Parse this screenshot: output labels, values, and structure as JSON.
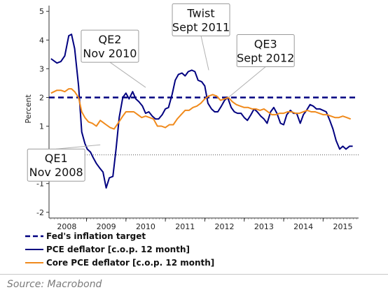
{
  "chart_data": {
    "type": "line",
    "ylabel": "Percent",
    "ylim": [
      -2.2,
      5.2
    ],
    "yticks": [
      5,
      4,
      3,
      2,
      1,
      0,
      -1,
      -2
    ],
    "xlim": [
      2007.55,
      2015.4
    ],
    "x_tick_labels": [
      {
        "label": "2008",
        "x": 2008.0
      },
      {
        "label": "2009",
        "x": 2009.0
      },
      {
        "label": "2010",
        "x": 2010.0
      },
      {
        "label": "2011",
        "x": 2011.0
      },
      {
        "label": "2012",
        "x": 2012.0
      },
      {
        "label": "2013",
        "x": 2013.0
      },
      {
        "label": "2014",
        "x": 2014.0
      },
      {
        "label": "2015",
        "x": 2015.0
      }
    ],
    "zero_line": "dotted",
    "series": [
      {
        "name": "Fed's inflation target",
        "color": "#000080",
        "style": "dashed",
        "x": [
          2007.55,
          2015.4
        ],
        "y": [
          2.0,
          2.0
        ]
      },
      {
        "name": "PCE deflator [c.o.p. 12 month]",
        "color": "#000080",
        "style": "solid",
        "x": [
          2007.6,
          2007.75,
          2007.85,
          2007.95,
          2008.05,
          2008.12,
          2008.2,
          2008.3,
          2008.38,
          2008.46,
          2008.52,
          2008.6,
          2008.67,
          2008.75,
          2008.83,
          2008.92,
          2009.0,
          2009.08,
          2009.17,
          2009.25,
          2009.33,
          2009.42,
          2009.5,
          2009.58,
          2009.67,
          2009.75,
          2009.83,
          2009.92,
          2010.0,
          2010.08,
          2010.17,
          2010.25,
          2010.33,
          2010.42,
          2010.5,
          2010.58,
          2010.67,
          2010.75,
          2010.83,
          2010.92,
          2011.0,
          2011.08,
          2011.17,
          2011.25,
          2011.33,
          2011.42,
          2011.5,
          2011.58,
          2011.67,
          2011.75,
          2011.83,
          2011.92,
          2012.0,
          2012.08,
          2012.17,
          2012.25,
          2012.33,
          2012.42,
          2012.5,
          2012.58,
          2012.67,
          2012.75,
          2012.83,
          2012.92,
          2013.0,
          2013.08,
          2013.17,
          2013.25,
          2013.33,
          2013.42,
          2013.5,
          2013.58,
          2013.67,
          2013.75,
          2013.83,
          2013.92,
          2014.0,
          2014.08,
          2014.17,
          2014.25,
          2014.33,
          2014.42,
          2014.5,
          2014.58,
          2014.67,
          2014.75,
          2014.83,
          2014.92,
          2015.0,
          2015.08,
          2015.17,
          2015.25
        ],
        "y": [
          3.35,
          3.2,
          3.25,
          3.45,
          4.15,
          4.2,
          3.7,
          2.4,
          0.8,
          0.4,
          0.2,
          0.1,
          -0.1,
          -0.3,
          -0.45,
          -0.6,
          -1.15,
          -0.8,
          -0.75,
          0.2,
          1.3,
          2.0,
          2.15,
          1.95,
          2.2,
          1.95,
          1.85,
          1.7,
          1.45,
          1.5,
          1.35,
          1.25,
          1.25,
          1.4,
          1.6,
          1.65,
          2.1,
          2.6,
          2.8,
          2.85,
          2.75,
          2.9,
          2.95,
          2.9,
          2.6,
          2.55,
          2.4,
          1.8,
          1.6,
          1.5,
          1.5,
          1.7,
          1.9,
          2.0,
          1.65,
          1.5,
          1.45,
          1.45,
          1.3,
          1.2,
          1.4,
          1.6,
          1.5,
          1.35,
          1.25,
          1.1,
          1.5,
          1.65,
          1.45,
          1.1,
          1.05,
          1.4,
          1.55,
          1.45,
          1.45,
          1.1,
          1.4,
          1.55,
          1.75,
          1.7,
          1.6,
          1.6,
          1.55,
          1.5,
          1.2,
          0.9,
          0.5,
          0.2,
          0.3,
          0.2,
          0.3,
          0.3
        ]
      },
      {
        "name": "Core PCE deflator [c.o.p. 12 month]",
        "color": "#f08a1c",
        "style": "solid",
        "x": [
          2007.6,
          2007.75,
          2007.85,
          2007.95,
          2008.05,
          2008.12,
          2008.2,
          2008.3,
          2008.38,
          2008.46,
          2008.55,
          2008.65,
          2008.75,
          2008.85,
          2008.95,
          2009.0,
          2009.1,
          2009.2,
          2009.3,
          2009.42,
          2009.5,
          2009.6,
          2009.7,
          2009.8,
          2009.9,
          2010.0,
          2010.1,
          2010.2,
          2010.3,
          2010.4,
          2010.5,
          2010.6,
          2010.7,
          2010.8,
          2010.9,
          2011.0,
          2011.1,
          2011.2,
          2011.3,
          2011.4,
          2011.5,
          2011.6,
          2011.7,
          2011.8,
          2011.9,
          2012.0,
          2012.1,
          2012.2,
          2012.3,
          2012.4,
          2012.5,
          2012.6,
          2012.7,
          2012.8,
          2012.9,
          2013.0,
          2013.1,
          2013.2,
          2013.3,
          2013.4,
          2013.5,
          2013.6,
          2013.7,
          2013.8,
          2013.9,
          2014.0,
          2014.1,
          2014.2,
          2014.3,
          2014.4,
          2014.5,
          2014.6,
          2014.7,
          2014.8,
          2014.9,
          2015.0,
          2015.1,
          2015.2
        ],
        "y": [
          2.15,
          2.25,
          2.25,
          2.2,
          2.3,
          2.3,
          2.2,
          2.0,
          1.5,
          1.3,
          1.15,
          1.1,
          1.0,
          1.2,
          1.1,
          1.05,
          0.95,
          0.9,
          1.1,
          1.35,
          1.5,
          1.5,
          1.5,
          1.4,
          1.3,
          1.35,
          1.3,
          1.25,
          1.0,
          1.0,
          0.95,
          1.05,
          1.05,
          1.25,
          1.4,
          1.55,
          1.55,
          1.65,
          1.7,
          1.8,
          1.95,
          2.05,
          2.1,
          2.05,
          1.9,
          1.95,
          2.0,
          1.85,
          1.75,
          1.7,
          1.65,
          1.65,
          1.6,
          1.6,
          1.55,
          1.6,
          1.5,
          1.4,
          1.4,
          1.45,
          1.45,
          1.5,
          1.5,
          1.45,
          1.45,
          1.5,
          1.55,
          1.5,
          1.5,
          1.45,
          1.4,
          1.4,
          1.35,
          1.3,
          1.3,
          1.35,
          1.3,
          1.25
        ]
      }
    ],
    "annotations": [
      {
        "lines": [
          "QE1",
          "Nov 2008"
        ],
        "x": 2008.85,
        "y": 0.35,
        "box_below": true
      },
      {
        "lines": [
          "QE2",
          "Nov 2010"
        ],
        "x": 2010.0,
        "y": 2.35,
        "box_below": false
      },
      {
        "lines": [
          "Twist",
          "Sept 2011"
        ],
        "x": 2011.6,
        "y": 2.95,
        "box_below": false
      },
      {
        "lines": [
          "QE3",
          "Sept 2012"
        ],
        "x": 2012.1,
        "y": 2.0,
        "box_below": false
      }
    ],
    "legend": [
      {
        "label": "Fed's inflation target",
        "color": "#000080",
        "style": "dashed"
      },
      {
        "label": "PCE deflator [c.o.p. 12 month]",
        "color": "#000080",
        "style": "solid"
      },
      {
        "label": "Core PCE deflator [c.o.p. 12 month]",
        "color": "#f08a1c",
        "style": "solid"
      }
    ],
    "legend_placement": "bottom-left",
    "grid": false
  },
  "footer": {
    "source": "Source: Macrobond"
  }
}
